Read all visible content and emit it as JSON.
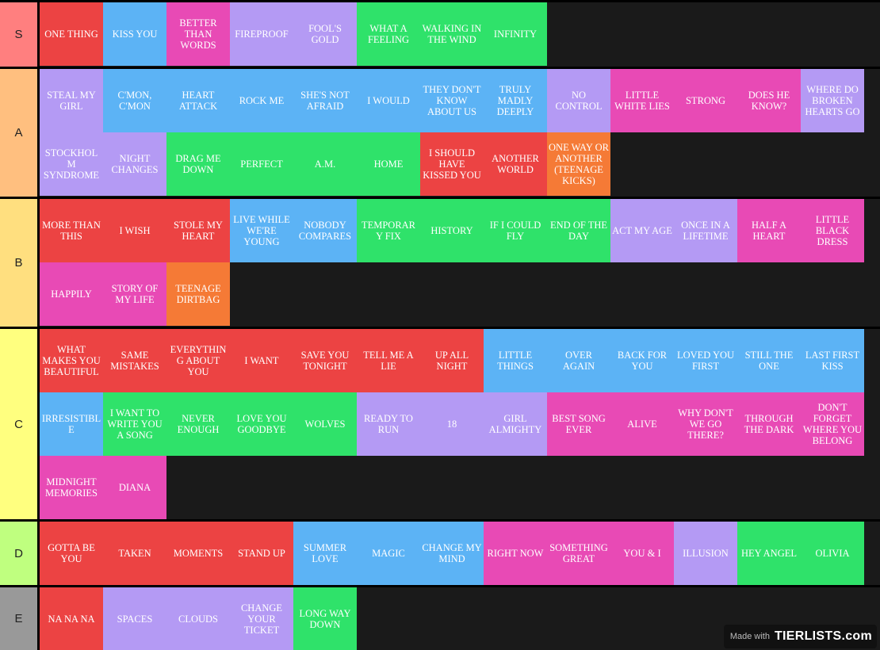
{
  "tiers": [
    {
      "label": "S",
      "color": "#ff7f7f",
      "items": [
        {
          "text": "ONE THING",
          "color": "red"
        },
        {
          "text": "KISS YOU",
          "color": "blue"
        },
        {
          "text": "BETTER THAN WORDS",
          "color": "pink"
        },
        {
          "text": "FIREPROOF",
          "color": "purple"
        },
        {
          "text": "FOOL'S GOLD",
          "color": "purple"
        },
        {
          "text": "WHAT A FEELING",
          "color": "green"
        },
        {
          "text": "WALKING IN THE WIND",
          "color": "green"
        },
        {
          "text": "INFINITY",
          "color": "green"
        }
      ]
    },
    {
      "label": "A",
      "color": "#ffbf7f",
      "items": [
        {
          "text": "STEAL MY GIRL",
          "color": "purple"
        },
        {
          "text": "C'MON, C'MON",
          "color": "blue"
        },
        {
          "text": "HEART ATTACK",
          "color": "blue"
        },
        {
          "text": "ROCK ME",
          "color": "blue"
        },
        {
          "text": "SHE'S NOT AFRAID",
          "color": "blue"
        },
        {
          "text": "I WOULD",
          "color": "blue"
        },
        {
          "text": "THEY DON'T KNOW ABOUT US",
          "color": "blue"
        },
        {
          "text": "TRULY MADLY DEEPLY",
          "color": "blue"
        },
        {
          "text": "NO CONTROL",
          "color": "purple"
        },
        {
          "text": "LITTLE WHITE LIES",
          "color": "pink"
        },
        {
          "text": "STRONG",
          "color": "pink"
        },
        {
          "text": "DOES HE KNOW?",
          "color": "pink"
        },
        {
          "text": "WHERE DO BROKEN HEARTS GO",
          "color": "purple"
        },
        {
          "text": "STOCKHOLM SYNDROME",
          "color": "purple"
        },
        {
          "text": "NIGHT CHANGES",
          "color": "purple"
        },
        {
          "text": "DRAG ME DOWN",
          "color": "green"
        },
        {
          "text": "PERFECT",
          "color": "green"
        },
        {
          "text": "A.M.",
          "color": "green"
        },
        {
          "text": "HOME",
          "color": "green"
        },
        {
          "text": "I SHOULD HAVE KISSED YOU",
          "color": "red"
        },
        {
          "text": "ANOTHER WORLD",
          "color": "red"
        },
        {
          "text": "ONE WAY OR ANOTHER (TEENAGE KICKS)",
          "color": "orange"
        }
      ]
    },
    {
      "label": "B",
      "color": "#ffdf7f",
      "items": [
        {
          "text": "MORE THAN THIS",
          "color": "red"
        },
        {
          "text": "I WISH",
          "color": "red"
        },
        {
          "text": "STOLE MY HEART",
          "color": "red"
        },
        {
          "text": "LIVE WHILE WE'RE YOUNG",
          "color": "blue"
        },
        {
          "text": "NOBODY COMPARES",
          "color": "blue"
        },
        {
          "text": "TEMPORARY FIX",
          "color": "green"
        },
        {
          "text": "HISTORY",
          "color": "green"
        },
        {
          "text": "IF I COULD FLY",
          "color": "green"
        },
        {
          "text": "END OF THE DAY",
          "color": "green"
        },
        {
          "text": "ACT MY AGE",
          "color": "purple"
        },
        {
          "text": "ONCE IN A LIFETIME",
          "color": "purple"
        },
        {
          "text": "HALF A HEART",
          "color": "pink"
        },
        {
          "text": "LITTLE BLACK DRESS",
          "color": "pink"
        },
        {
          "text": "HAPPILY",
          "color": "pink"
        },
        {
          "text": "STORY OF MY LIFE",
          "color": "pink"
        },
        {
          "text": "TEENAGE DIRTBAG",
          "color": "orange"
        }
      ]
    },
    {
      "label": "C",
      "color": "#ffff7f",
      "items": [
        {
          "text": "WHAT MAKES YOU BEAUTIFUL",
          "color": "red"
        },
        {
          "text": "SAME MISTAKES",
          "color": "red"
        },
        {
          "text": "EVERYTHING ABOUT YOU",
          "color": "red"
        },
        {
          "text": "I WANT",
          "color": "red"
        },
        {
          "text": "SAVE YOU TONIGHT",
          "color": "red"
        },
        {
          "text": "TELL ME A LIE",
          "color": "red"
        },
        {
          "text": "UP ALL NIGHT",
          "color": "red"
        },
        {
          "text": "LITTLE THINGS",
          "color": "blue"
        },
        {
          "text": "OVER AGAIN",
          "color": "blue"
        },
        {
          "text": "BACK FOR YOU",
          "color": "blue"
        },
        {
          "text": "LOVED YOU FIRST",
          "color": "blue"
        },
        {
          "text": "STILL THE ONE",
          "color": "blue"
        },
        {
          "text": "LAST FIRST KISS",
          "color": "blue"
        },
        {
          "text": "IRRESISTIBLE",
          "color": "blue"
        },
        {
          "text": "I WANT TO WRITE YOU A SONG",
          "color": "green"
        },
        {
          "text": "NEVER ENOUGH",
          "color": "green"
        },
        {
          "text": "LOVE YOU GOODBYE",
          "color": "green"
        },
        {
          "text": "WOLVES",
          "color": "green"
        },
        {
          "text": "READY TO RUN",
          "color": "purple"
        },
        {
          "text": "18",
          "color": "purple"
        },
        {
          "text": "GIRL ALMIGHTY",
          "color": "purple"
        },
        {
          "text": "BEST SONG EVER",
          "color": "pink"
        },
        {
          "text": "ALIVE",
          "color": "pink"
        },
        {
          "text": "WHY DON'T WE GO THERE?",
          "color": "pink"
        },
        {
          "text": "THROUGH THE DARK",
          "color": "pink"
        },
        {
          "text": "DON'T FORGET WHERE YOU BELONG",
          "color": "pink"
        },
        {
          "text": "MIDNIGHT MEMORIES",
          "color": "pink"
        },
        {
          "text": "DIANA",
          "color": "pink"
        }
      ]
    },
    {
      "label": "D",
      "color": "#bfff7f",
      "items": [
        {
          "text": "GOTTA BE YOU",
          "color": "red"
        },
        {
          "text": "TAKEN",
          "color": "red"
        },
        {
          "text": "MOMENTS",
          "color": "red"
        },
        {
          "text": "STAND UP",
          "color": "red"
        },
        {
          "text": "SUMMER LOVE",
          "color": "blue"
        },
        {
          "text": "MAGIC",
          "color": "blue"
        },
        {
          "text": "CHANGE MY MIND",
          "color": "blue"
        },
        {
          "text": "RIGHT NOW",
          "color": "pink"
        },
        {
          "text": "SOMETHING GREAT",
          "color": "pink"
        },
        {
          "text": "YOU & I",
          "color": "pink"
        },
        {
          "text": "ILLUSION",
          "color": "purple"
        },
        {
          "text": "HEY ANGEL",
          "color": "green"
        },
        {
          "text": "OLIVIA",
          "color": "green"
        }
      ]
    },
    {
      "label": "E",
      "color": "#999999",
      "items": [
        {
          "text": "NA NA NA",
          "color": "red"
        },
        {
          "text": "SPACES",
          "color": "purple"
        },
        {
          "text": "CLOUDS",
          "color": "purple"
        },
        {
          "text": "CHANGE YOUR TICKET",
          "color": "purple"
        },
        {
          "text": "LONG WAY DOWN",
          "color": "green"
        }
      ]
    }
  ],
  "palette": {
    "red": "#ec4343",
    "blue": "#5cb3f5",
    "pink": "#e84ab5",
    "purple": "#b49af4",
    "green": "#2fe26a",
    "orange": "#f57a36"
  },
  "watermark": {
    "made_with": "Made with",
    "logo": "TIERLISTS.com"
  }
}
